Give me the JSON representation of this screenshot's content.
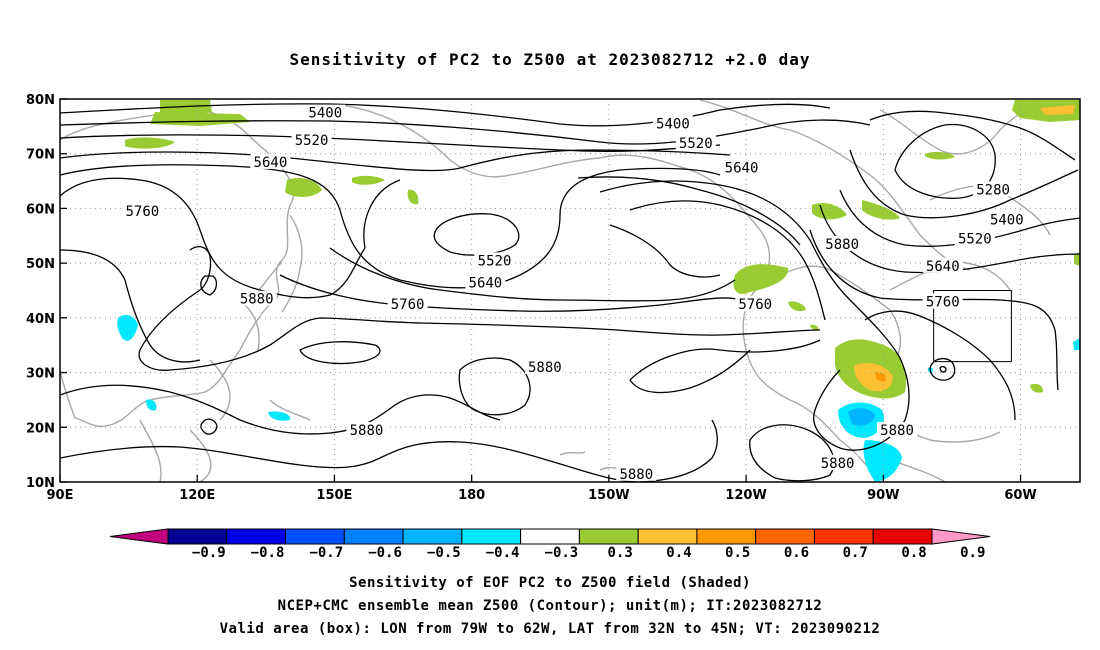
{
  "title": "Sensitivity of PC2 to Z500 at 2023082712 +2.0 day",
  "chart_data": {
    "type": "heatmap",
    "title": "Sensitivity of PC2 to Z500 at 2023082712 +2.0 day",
    "x_tick_labels": [
      "90E",
      "120E",
      "150E",
      "180",
      "150W",
      "120W",
      "90W",
      "60W"
    ],
    "x_tick_lons": [
      90,
      120,
      150,
      180,
      210,
      240,
      270,
      300
    ],
    "y_tick_labels": [
      "10N",
      "20N",
      "30N",
      "40N",
      "50N",
      "60N",
      "70N",
      "80N"
    ],
    "y_tick_lats": [
      10,
      20,
      30,
      40,
      50,
      60,
      70,
      80
    ],
    "xlim": [
      90,
      313
    ],
    "ylim": [
      10,
      80
    ],
    "grid": "dotted",
    "contour_labels": [
      {
        "text": "5400",
        "lon": 148,
        "lat": 77.5
      },
      {
        "text": "5400",
        "lon": 224,
        "lat": 75.5
      },
      {
        "text": "5520",
        "lon": 145,
        "lat": 72.5
      },
      {
        "text": "5520",
        "lon": 229,
        "lat": 72.0
      },
      {
        "text": "5640",
        "lon": 136,
        "lat": 68.5
      },
      {
        "text": "5640",
        "lon": 239,
        "lat": 67.5
      },
      {
        "text": "5280",
        "lon": 294,
        "lat": 63.5
      },
      {
        "text": "5760",
        "lon": 108,
        "lat": 59.5
      },
      {
        "text": "5400",
        "lon": 297,
        "lat": 58.0
      },
      {
        "text": "5520",
        "lon": 185,
        "lat": 50.5
      },
      {
        "text": "5520",
        "lon": 290,
        "lat": 54.5
      },
      {
        "text": "5640",
        "lon": 183,
        "lat": 46.5
      },
      {
        "text": "5640",
        "lon": 283,
        "lat": 49.5
      },
      {
        "text": "5880",
        "lon": 133,
        "lat": 43.5
      },
      {
        "text": "5760",
        "lon": 166,
        "lat": 42.5
      },
      {
        "text": "5760",
        "lon": 242,
        "lat": 42.5
      },
      {
        "text": "5880",
        "lon": 261,
        "lat": 53.5
      },
      {
        "text": "5760",
        "lon": 283,
        "lat": 43.0
      },
      {
        "text": "5880",
        "lon": 196,
        "lat": 31.0
      },
      {
        "text": "5880",
        "lon": 157,
        "lat": 19.5
      },
      {
        "text": "5880",
        "lon": 273,
        "lat": 19.5
      },
      {
        "text": "5880",
        "lon": 260,
        "lat": 13.5
      },
      {
        "text": "5880",
        "lon": 216,
        "lat": 11.5
      }
    ],
    "valid_box": {
      "lon": [
        281,
        298
      ],
      "lat": [
        32,
        45
      ]
    },
    "colorbar": {
      "tick_labels": [
        "−0.9",
        "−0.8",
        "−0.7",
        "−0.6",
        "−0.5",
        "−0.4",
        "−0.3",
        "0.3",
        "0.4",
        "0.5",
        "0.6",
        "0.7",
        "0.8",
        "0.9"
      ],
      "colors": [
        "#c0007f",
        "#000091",
        "#0000e6",
        "#0050ff",
        "#007fff",
        "#00b4ff",
        "#00e8ff",
        "#ffffff",
        "#99cc33",
        "#ffc033",
        "#ff9900",
        "#ff6600",
        "#ff3300",
        "#e60000",
        "#ff99c8"
      ]
    }
  },
  "captions": {
    "line1": "Sensitivity of EOF PC2 to Z500 field (Shaded)",
    "line2": "NCEP+CMC ensemble mean Z500 (Contour); unit(m); IT:2023082712",
    "line3": "Valid area (box): LON from 79W to 62W, LAT from 32N to 45N; VT: 2023090212"
  }
}
